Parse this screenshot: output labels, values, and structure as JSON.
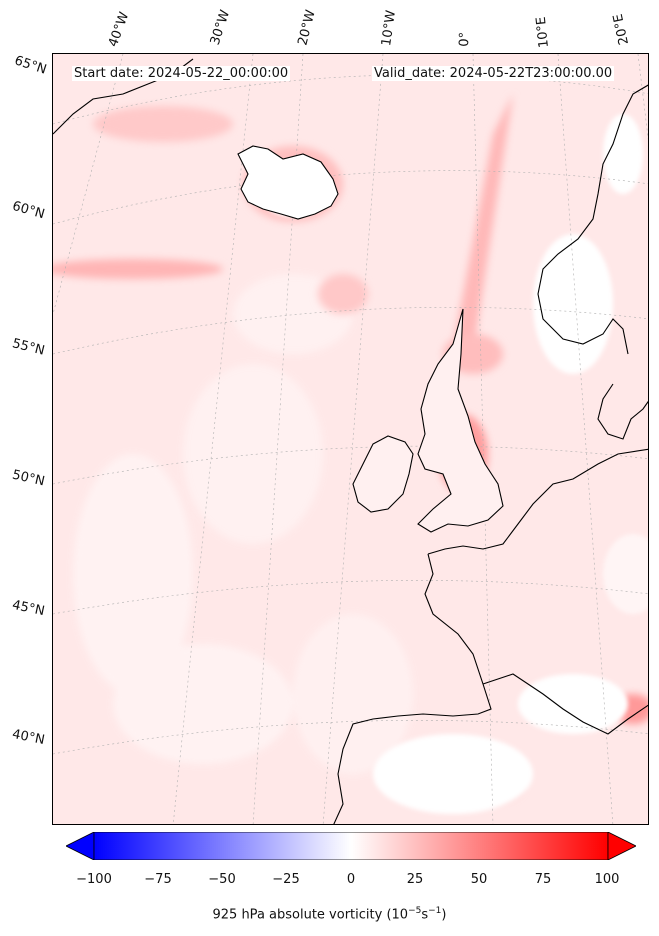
{
  "header": {
    "start_date": "Start date: 2024-05-22_00:00:00",
    "valid_date": "Valid_date: 2024-05-22T23:00:00.00"
  },
  "longitude_labels": [
    "40°W",
    "30°W",
    "20°W",
    "10°W",
    "0°",
    "10°E",
    "20°E"
  ],
  "latitude_labels": [
    "65°N",
    "60°N",
    "55°N",
    "50°N",
    "45°N",
    "40°N"
  ],
  "colorbar": {
    "ticks": [
      "−100",
      "−75",
      "−50",
      "−25",
      "0",
      "25",
      "50",
      "75",
      "100"
    ],
    "label_prefix": "925 hPa absolute vorticity (10",
    "label_exp1": "−5",
    "label_mid": "s",
    "label_exp2": "−1",
    "label_suffix": ")",
    "range": [
      -100,
      100
    ],
    "colors": [
      "#0000ff",
      "#ffffff",
      "#ff0000"
    ],
    "extend": "both"
  },
  "map": {
    "variable": "925 hPa absolute vorticity",
    "ocean_color": "#ffe9e9",
    "coastline_color": "#000000"
  }
}
